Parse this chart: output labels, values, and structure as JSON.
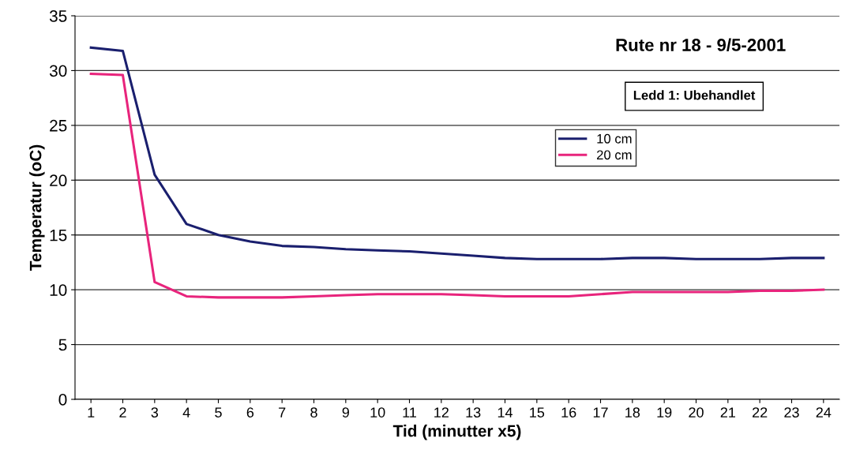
{
  "chart_data": {
    "type": "line",
    "title": "Rute nr 18 - 9/5-2001",
    "xlabel": "Tid (minutter x5)",
    "ylabel": "Temperatur (oC)",
    "annotations": [
      "Ledd 1: Ubehandlet"
    ],
    "categories": [
      "1",
      "2",
      "3",
      "4",
      "5",
      "6",
      "7",
      "8",
      "9",
      "10",
      "11",
      "12",
      "13",
      "14",
      "15",
      "16",
      "17",
      "18",
      "19",
      "20",
      "21",
      "22",
      "23",
      "24"
    ],
    "series": [
      {
        "name": "10 cm",
        "color": "#1a1f6e",
        "values": [
          32.1,
          31.8,
          20.5,
          16.0,
          15.0,
          14.4,
          14.0,
          13.9,
          13.7,
          13.6,
          13.5,
          13.3,
          13.1,
          12.9,
          12.8,
          12.8,
          12.8,
          12.9,
          12.9,
          12.8,
          12.8,
          12.8,
          12.9,
          12.9
        ]
      },
      {
        "name": "20 cm",
        "color": "#e8247c",
        "values": [
          29.7,
          29.6,
          10.7,
          9.4,
          9.3,
          9.3,
          9.3,
          9.4,
          9.5,
          9.6,
          9.6,
          9.6,
          9.5,
          9.4,
          9.4,
          9.4,
          9.6,
          9.8,
          9.8,
          9.8,
          9.8,
          9.9,
          9.9,
          10.0
        ]
      }
    ],
    "ylim": [
      0,
      35
    ],
    "yticks": [
      0,
      5,
      10,
      15,
      20,
      25,
      30,
      35
    ],
    "grid": "y",
    "legend": "top right",
    "marker": "none",
    "line_style": "solid"
  }
}
